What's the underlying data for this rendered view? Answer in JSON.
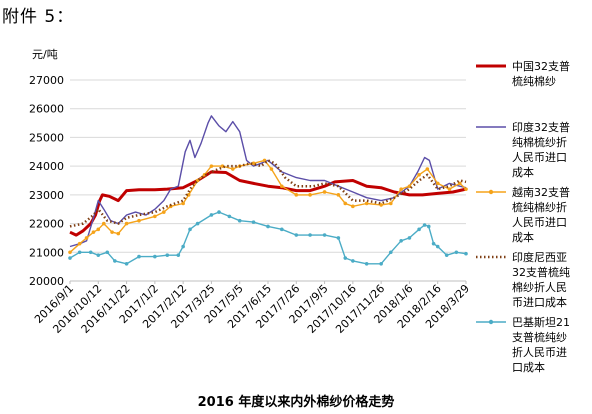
{
  "header": "附件 5：",
  "caption": "2016 年度以来内外棉纱价格走势",
  "chart_data": {
    "type": "line",
    "title": "",
    "ylabel": "元/吨",
    "xlabel": "",
    "ylim": [
      20000,
      27000
    ],
    "yticks": [
      20000,
      21000,
      22000,
      23000,
      24000,
      25000,
      26000,
      27000
    ],
    "xlim": [
      "2016/9/1",
      "2018/3/29"
    ],
    "xticks": [
      "2016/9/1",
      "2016/10/12",
      "2016/11/22",
      "2017/1/2",
      "2017/2/12",
      "2017/3/25",
      "2017/5/5",
      "2017/6/15",
      "2017/7/26",
      "2017/9/5",
      "2017/10/16",
      "2017/11/26",
      "2018/1/6",
      "2018/2/16",
      "2018/3/29"
    ],
    "grid": true,
    "legend": "right",
    "series": [
      {
        "name": "中国32支普梳纯棉纱",
        "color": "#c00000",
        "style": "solid-thick",
        "points": [
          [
            "2016/9/1",
            21700
          ],
          [
            "2016/9/10",
            21600
          ],
          [
            "2016/9/20",
            21750
          ],
          [
            "2016/10/1",
            22000
          ],
          [
            "2016/10/8",
            22300
          ],
          [
            "2016/10/14",
            22800
          ],
          [
            "2016/10/18",
            23000
          ],
          [
            "2016/10/28",
            22950
          ],
          [
            "2016/11/10",
            22800
          ],
          [
            "2016/11/22",
            23150
          ],
          [
            "2016/12/10",
            23180
          ],
          [
            "2017/1/2",
            23180
          ],
          [
            "2017/1/20",
            23200
          ],
          [
            "2017/2/12",
            23250
          ],
          [
            "2017/3/5",
            23500
          ],
          [
            "2017/3/25",
            23800
          ],
          [
            "2017/4/15",
            23780
          ],
          [
            "2017/5/5",
            23500
          ],
          [
            "2017/5/25",
            23400
          ],
          [
            "2017/6/15",
            23300
          ],
          [
            "2017/7/5",
            23250
          ],
          [
            "2017/7/26",
            23150
          ],
          [
            "2017/8/15",
            23150
          ],
          [
            "2017/9/5",
            23300
          ],
          [
            "2017/9/20",
            23450
          ],
          [
            "2017/10/16",
            23500
          ],
          [
            "2017/11/5",
            23300
          ],
          [
            "2017/11/26",
            23250
          ],
          [
            "2017/12/15",
            23100
          ],
          [
            "2018/1/6",
            23000
          ],
          [
            "2018/1/25",
            23000
          ],
          [
            "2018/2/16",
            23050
          ],
          [
            "2018/3/10",
            23100
          ],
          [
            "2018/3/29",
            23200
          ]
        ]
      },
      {
        "name": "印度32支普纯棉梳纱折人民币进口成本",
        "color": "#5b4ea8",
        "style": "solid",
        "points": [
          [
            "2016/9/1",
            21200
          ],
          [
            "2016/9/15",
            21300
          ],
          [
            "2016/9/25",
            21400
          ],
          [
            "2016/10/5",
            22200
          ],
          [
            "2016/10/12",
            22800
          ],
          [
            "2016/10/20",
            22500
          ],
          [
            "2016/10/30",
            22100
          ],
          [
            "2016/11/10",
            22000
          ],
          [
            "2016/11/22",
            22300
          ],
          [
            "2016/12/5",
            22400
          ],
          [
            "2016/12/20",
            22300
          ],
          [
            "2017/1/2",
            22500
          ],
          [
            "2017/1/15",
            22800
          ],
          [
            "2017/1/25",
            23200
          ],
          [
            "2017/2/5",
            23300
          ],
          [
            "2017/2/15",
            24500
          ],
          [
            "2017/2/22",
            24900
          ],
          [
            "2017/3/1",
            24300
          ],
          [
            "2017/3/10",
            24800
          ],
          [
            "2017/3/20",
            25500
          ],
          [
            "2017/3/25",
            25750
          ],
          [
            "2017/4/5",
            25400
          ],
          [
            "2017/4/15",
            25200
          ],
          [
            "2017/4/25",
            25550
          ],
          [
            "2017/5/5",
            25200
          ],
          [
            "2017/5/15",
            24200
          ],
          [
            "2017/5/25",
            24000
          ],
          [
            "2017/6/5",
            24100
          ],
          [
            "2017/6/15",
            24200
          ],
          [
            "2017/6/25",
            24000
          ],
          [
            "2017/7/5",
            23800
          ],
          [
            "2017/7/26",
            23600
          ],
          [
            "2017/8/15",
            23500
          ],
          [
            "2017/9/5",
            23500
          ],
          [
            "2017/9/25",
            23300
          ],
          [
            "2017/10/16",
            23100
          ],
          [
            "2017/11/5",
            22900
          ],
          [
            "2017/11/26",
            22800
          ],
          [
            "2017/12/15",
            22900
          ],
          [
            "2018/1/6",
            23300
          ],
          [
            "2018/1/18",
            23800
          ],
          [
            "2018/1/28",
            24300
          ],
          [
            "2018/2/4",
            24200
          ],
          [
            "2018/2/10",
            23700
          ],
          [
            "2018/2/16",
            23200
          ],
          [
            "2018/3/5",
            23400
          ],
          [
            "2018/3/20",
            23300
          ],
          [
            "2018/3/29",
            23250
          ]
        ]
      },
      {
        "name": "越南32支普梳纯棉纱折人民币进口成本",
        "color": "#f5a31a",
        "style": "solid-markers",
        "points": [
          [
            "2016/9/1",
            21000
          ],
          [
            "2016/9/15",
            21300
          ],
          [
            "2016/9/25",
            21500
          ],
          [
            "2016/10/5",
            21700
          ],
          [
            "2016/10/12",
            21800
          ],
          [
            "2016/10/20",
            22000
          ],
          [
            "2016/11/1",
            21700
          ],
          [
            "2016/11/10",
            21650
          ],
          [
            "2016/11/22",
            22000
          ],
          [
            "2016/12/10",
            22100
          ],
          [
            "2017/1/2",
            22250
          ],
          [
            "2017/1/15",
            22400
          ],
          [
            "2017/1/25",
            22600
          ],
          [
            "2017/2/12",
            22700
          ],
          [
            "2017/2/20",
            23000
          ],
          [
            "2017/3/5",
            23500
          ],
          [
            "2017/3/15",
            23700
          ],
          [
            "2017/3/25",
            24000
          ],
          [
            "2017/4/10",
            24000
          ],
          [
            "2017/4/25",
            23900
          ],
          [
            "2017/5/5",
            24000
          ],
          [
            "2017/5/25",
            24100
          ],
          [
            "2017/6/10",
            24200
          ],
          [
            "2017/6/20",
            23900
          ],
          [
            "2017/7/5",
            23300
          ],
          [
            "2017/7/26",
            23000
          ],
          [
            "2017/8/15",
            23000
          ],
          [
            "2017/9/5",
            23100
          ],
          [
            "2017/9/25",
            23000
          ],
          [
            "2017/10/5",
            22700
          ],
          [
            "2017/10/16",
            22600
          ],
          [
            "2017/11/5",
            22700
          ],
          [
            "2017/11/26",
            22650
          ],
          [
            "2017/12/10",
            22700
          ],
          [
            "2017/12/25",
            23200
          ],
          [
            "2018/1/6",
            23300
          ],
          [
            "2018/1/20",
            23700
          ],
          [
            "2018/2/1",
            23900
          ],
          [
            "2018/2/16",
            23400
          ],
          [
            "2018/3/5",
            23200
          ],
          [
            "2018/3/20",
            23400
          ],
          [
            "2018/3/29",
            23200
          ]
        ]
      },
      {
        "name": "印度尼西亚32支普梳纯棉纱折人民币进口成本",
        "color": "#7f3f14",
        "style": "dotted",
        "points": [
          [
            "2016/9/1",
            21900
          ],
          [
            "2016/9/20",
            22000
          ],
          [
            "2016/10/5",
            22300
          ],
          [
            "2016/10/12",
            22500
          ],
          [
            "2016/10/25",
            22100
          ],
          [
            "2016/11/10",
            22000
          ],
          [
            "2016/11/22",
            22200
          ],
          [
            "2016/12/10",
            22300
          ],
          [
            "2017/1/2",
            22400
          ],
          [
            "2017/1/20",
            22600
          ],
          [
            "2017/2/12",
            22800
          ],
          [
            "2017/2/25",
            23300
          ],
          [
            "2017/3/10",
            23600
          ],
          [
            "2017/3/25",
            23800
          ],
          [
            "2017/4/15",
            24000
          ],
          [
            "2017/5/5",
            24000
          ],
          [
            "2017/5/20",
            24100
          ],
          [
            "2017/6/5",
            24000
          ],
          [
            "2017/6/15",
            24200
          ],
          [
            "2017/6/25",
            24100
          ],
          [
            "2017/7/10",
            23600
          ],
          [
            "2017/7/26",
            23300
          ],
          [
            "2017/8/20",
            23300
          ],
          [
            "2017/9/5",
            23400
          ],
          [
            "2017/9/25",
            23300
          ],
          [
            "2017/10/16",
            22800
          ],
          [
            "2017/11/5",
            22800
          ],
          [
            "2017/11/26",
            22700
          ],
          [
            "2017/12/15",
            22900
          ],
          [
            "2018/1/6",
            23200
          ],
          [
            "2018/1/20",
            23500
          ],
          [
            "2018/2/1",
            23700
          ],
          [
            "2018/2/16",
            23200
          ],
          [
            "2018/3/5",
            23300
          ],
          [
            "2018/3/20",
            23500
          ],
          [
            "2018/3/29",
            23450
          ]
        ]
      },
      {
        "name": "巴基斯坦21支普梳纯纱折人民币进口成本",
        "color": "#4bacc6",
        "style": "solid-markers",
        "points": [
          [
            "2016/9/1",
            20800
          ],
          [
            "2016/9/15",
            21000
          ],
          [
            "2016/10/1",
            21000
          ],
          [
            "2016/10/12",
            20900
          ],
          [
            "2016/10/25",
            21000
          ],
          [
            "2016/11/5",
            20700
          ],
          [
            "2016/11/22",
            20600
          ],
          [
            "2016/12/10",
            20850
          ],
          [
            "2017/1/2",
            20850
          ],
          [
            "2017/1/20",
            20900
          ],
          [
            "2017/2/5",
            20900
          ],
          [
            "2017/2/12",
            21200
          ],
          [
            "2017/2/22",
            21800
          ],
          [
            "2017/3/5",
            22000
          ],
          [
            "2017/3/25",
            22300
          ],
          [
            "2017/4/5",
            22400
          ],
          [
            "2017/4/20",
            22250
          ],
          [
            "2017/5/5",
            22100
          ],
          [
            "2017/5/25",
            22050
          ],
          [
            "2017/6/15",
            21900
          ],
          [
            "2017/7/5",
            21800
          ],
          [
            "2017/7/26",
            21600
          ],
          [
            "2017/8/15",
            21600
          ],
          [
            "2017/9/5",
            21600
          ],
          [
            "2017/9/25",
            21500
          ],
          [
            "2017/10/5",
            20800
          ],
          [
            "2017/10/16",
            20700
          ],
          [
            "2017/11/5",
            20600
          ],
          [
            "2017/11/26",
            20600
          ],
          [
            "2017/12/10",
            21000
          ],
          [
            "2017/12/25",
            21400
          ],
          [
            "2018/1/6",
            21500
          ],
          [
            "2018/1/20",
            21800
          ],
          [
            "2018/1/28",
            21950
          ],
          [
            "2018/2/3",
            21900
          ],
          [
            "2018/2/10",
            21300
          ],
          [
            "2018/2/16",
            21200
          ],
          [
            "2018/3/1",
            20900
          ],
          [
            "2018/3/15",
            21000
          ],
          [
            "2018/3/29",
            20950
          ]
        ]
      }
    ]
  }
}
